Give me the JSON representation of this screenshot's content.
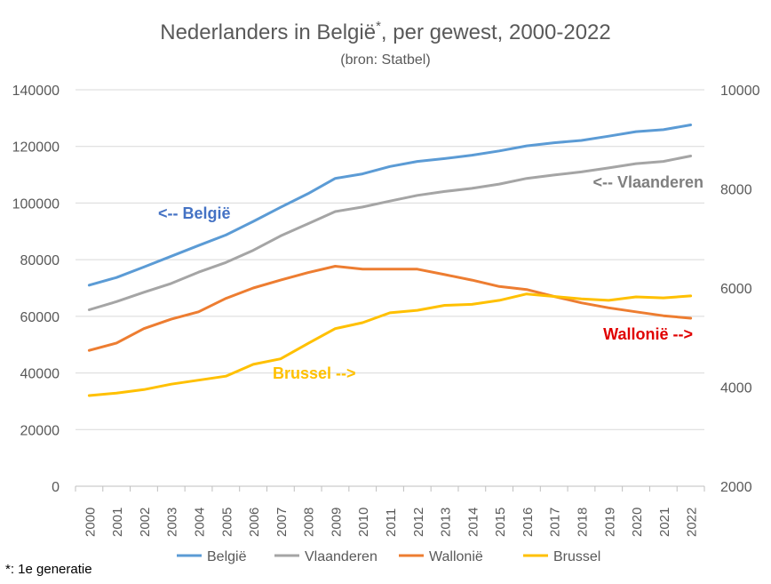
{
  "chart_data": {
    "type": "line",
    "title": "Nederlanders in België",
    "title_superscript": "*",
    "title_rest": ", per gewest, 2000-2022",
    "subtitle": "(bron: Statbel)",
    "footnote": "*: 1e generatie",
    "categories": [
      "2000",
      "2001",
      "2002",
      "2003",
      "2004",
      "2005",
      "2006",
      "2007",
      "2008",
      "2009",
      "2010",
      "2011",
      "2012",
      "2013",
      "2014",
      "2015",
      "2016",
      "2017",
      "2018",
      "2019",
      "2020",
      "2021",
      "2022"
    ],
    "y_left": {
      "min": 0,
      "max": 140000,
      "step": 20000,
      "ticks": [
        "0",
        "20000",
        "40000",
        "60000",
        "80000",
        "100000",
        "120000",
        "140000"
      ]
    },
    "y_right": {
      "min": 2000,
      "max": 10000,
      "step": 2000,
      "ticks": [
        "2000",
        "4000",
        "6000",
        "8000",
        "10000"
      ]
    },
    "grid": "horizontal",
    "legend_position": "bottom",
    "series": [
      {
        "name": "België",
        "axis": "left",
        "color": "#5B9BD5",
        "values": [
          71000,
          73700,
          77400,
          81200,
          85000,
          88700,
          93500,
          98500,
          103300,
          108700,
          110300,
          112900,
          114700,
          115700,
          116900,
          118400,
          120200,
          121300,
          122100,
          123600,
          125200,
          125900,
          127600
        ]
      },
      {
        "name": "Vlaanderen",
        "axis": "left",
        "color": "#A5A5A5",
        "values": [
          62300,
          65200,
          68500,
          71600,
          75600,
          79000,
          83300,
          88400,
          92700,
          97000,
          98600,
          100700,
          102700,
          104100,
          105200,
          106700,
          108700,
          109900,
          111000,
          112400,
          113900,
          114700,
          116600
        ]
      },
      {
        "name": "Wallonië",
        "axis": "right",
        "color": "#ED7D31",
        "values": [
          4740,
          4890,
          5180,
          5370,
          5520,
          5790,
          6000,
          6160,
          6310,
          6440,
          6380,
          6380,
          6380,
          6270,
          6160,
          6030,
          5970,
          5830,
          5700,
          5600,
          5520,
          5440,
          5390
        ]
      },
      {
        "name": "Brussel",
        "axis": "right",
        "color": "#FFC000",
        "values": [
          3830,
          3880,
          3950,
          4060,
          4140,
          4220,
          4460,
          4570,
          4880,
          5180,
          5300,
          5500,
          5550,
          5650,
          5670,
          5750,
          5880,
          5830,
          5780,
          5750,
          5820,
          5800,
          5840
        ]
      }
    ],
    "annotations": [
      {
        "text": "<-- België",
        "color": "#4472C4"
      },
      {
        "text": "<-- Vlaanderen",
        "color": "#7F7F7F"
      },
      {
        "text": "Wallonië -->",
        "color": "#E00000"
      },
      {
        "text": "Brussel -->",
        "color": "#FFC000"
      }
    ]
  }
}
